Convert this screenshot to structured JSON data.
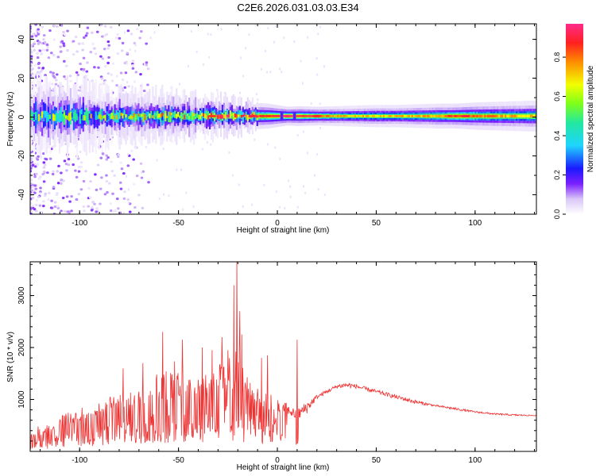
{
  "title": "C2E6.2026.031.03.03.E34",
  "colors": {
    "snr_line": "#ee3333",
    "axis": "#000000"
  },
  "chart_data": [
    {
      "type": "heatmap",
      "xlabel": "Height of straight line (km)",
      "ylabel": "Frequency (Hz)",
      "xlim": [
        -125,
        131
      ],
      "ylim": [
        -50,
        48
      ],
      "xticks": [
        -100,
        -50,
        0,
        50,
        100
      ],
      "xtick_labels": [
        "-100",
        "-50",
        "0",
        "50",
        "100"
      ],
      "yticks": [
        -40,
        -20,
        0,
        20,
        40
      ],
      "ytick_labels": [
        "-40",
        "-20",
        "0",
        "20",
        "40"
      ],
      "grid": false,
      "colorbar": {
        "label": "Normalized spectral amplitude",
        "range": [
          0,
          0.97
        ],
        "ticks": [
          0.0,
          0.2,
          0.4,
          0.6,
          0.8
        ],
        "tick_labels": [
          "0.0",
          "0.2",
          "0.4",
          "0.6",
          "0.8"
        ],
        "colormap": [
          "#ffffff",
          "#d9c6f7",
          "#7b1fff",
          "#1a1aff",
          "#1fd4ff",
          "#22e8a0",
          "#7dff1a",
          "#f2ff00",
          "#ff8c00",
          "#ff2020",
          "#ff2b8a"
        ]
      },
      "band": {
        "center_frequency": 0.5,
        "profile": [
          [
            -125,
            0.45,
            5
          ],
          [
            -115,
            0.5,
            5
          ],
          [
            -105,
            0.5,
            5
          ],
          [
            -95,
            0.5,
            4.5
          ],
          [
            -85,
            0.5,
            4
          ],
          [
            -75,
            0.55,
            3.8
          ],
          [
            -65,
            0.6,
            3.5
          ],
          [
            -55,
            0.65,
            3.5
          ],
          [
            -45,
            0.65,
            3.3
          ],
          [
            -35,
            0.7,
            3.0
          ],
          [
            -25,
            0.75,
            2.6
          ],
          [
            -15,
            0.82,
            2.2
          ],
          [
            -5,
            0.85,
            2.0
          ],
          [
            5,
            0.95,
            1.5
          ],
          [
            10,
            0.9,
            1.6
          ],
          [
            20,
            0.85,
            1.5
          ],
          [
            30,
            0.75,
            1.6
          ],
          [
            40,
            0.72,
            1.7
          ],
          [
            50,
            0.7,
            1.8
          ],
          [
            60,
            0.72,
            1.8
          ],
          [
            70,
            0.74,
            1.9
          ],
          [
            80,
            0.76,
            2.0
          ],
          [
            90,
            0.85,
            2.0
          ],
          [
            100,
            0.8,
            2.2
          ],
          [
            110,
            0.75,
            2.3
          ],
          [
            120,
            0.73,
            2.4
          ],
          [
            131,
            0.72,
            2.5
          ]
        ],
        "gaps_km": [
          2,
          8
        ]
      }
    },
    {
      "type": "line",
      "xlabel": "Height of straight line (km)",
      "ylabel": "SNR (10 * v/v)",
      "xlim": [
        -125,
        131
      ],
      "ylim": [
        0,
        3650
      ],
      "xticks": [
        -100,
        -50,
        0,
        50,
        100
      ],
      "xtick_labels": [
        "-100",
        "-50",
        "0",
        "50",
        "100"
      ],
      "yticks": [
        1000,
        2000,
        3000
      ],
      "ytick_labels": [
        "1000",
        "2000",
        "3000"
      ],
      "grid": false,
      "series": [
        {
          "color": "#ee3333",
          "envelope": [
            [
              -125,
              200,
              300
            ],
            [
              -115,
              350,
              500
            ],
            [
              -105,
              500,
              650
            ],
            [
              -95,
              650,
              750
            ],
            [
              -85,
              750,
              900
            ],
            [
              -75,
              850,
              1000
            ],
            [
              -65,
              950,
              1200
            ],
            [
              -55,
              1000,
              1400
            ],
            [
              -45,
              1100,
              1300
            ],
            [
              -35,
              1100,
              1350
            ],
            [
              -25,
              1200,
              1600
            ],
            [
              -20,
              1100,
              1700
            ],
            [
              -15,
              1000,
              1200
            ],
            [
              -10,
              950,
              1100
            ],
            [
              -5,
              800,
              1000
            ],
            [
              0,
              700,
              900
            ],
            [
              5,
              800,
              900
            ],
            [
              10,
              700,
              850
            ],
            [
              15,
              850,
              1000
            ],
            [
              20,
              1050,
              1100
            ],
            [
              25,
              1150,
              1200
            ],
            [
              30,
              1250,
              1300
            ],
            [
              35,
              1280,
              1350
            ],
            [
              40,
              1250,
              1300
            ],
            [
              45,
              1200,
              1250
            ],
            [
              50,
              1150,
              1200
            ],
            [
              60,
              1050,
              1100
            ],
            [
              70,
              950,
              1000
            ],
            [
              80,
              880,
              900
            ],
            [
              90,
              820,
              850
            ],
            [
              100,
              760,
              780
            ],
            [
              110,
              720,
              740
            ],
            [
              120,
              700,
              720
            ],
            [
              131,
              690,
              700
            ]
          ],
          "peaks": [
            [
              -20.5,
              3650
            ],
            [
              -22,
              3200
            ],
            [
              -19,
              2700
            ],
            [
              -28,
              2200
            ],
            [
              -18,
              2250
            ],
            [
              -58,
              2300
            ],
            [
              -48,
              2150
            ],
            [
              -38,
              2000
            ],
            [
              -33,
              1950
            ],
            [
              -25,
              1950
            ],
            [
              -8,
              1800
            ],
            [
              -5,
              1850
            ],
            [
              10,
              2150
            ],
            [
              -68,
              1700
            ],
            [
              -78,
              1600
            ]
          ],
          "dips": [
            [
              2,
              200
            ],
            [
              10,
              100
            ],
            [
              -1,
              500
            ]
          ]
        }
      ]
    }
  ]
}
